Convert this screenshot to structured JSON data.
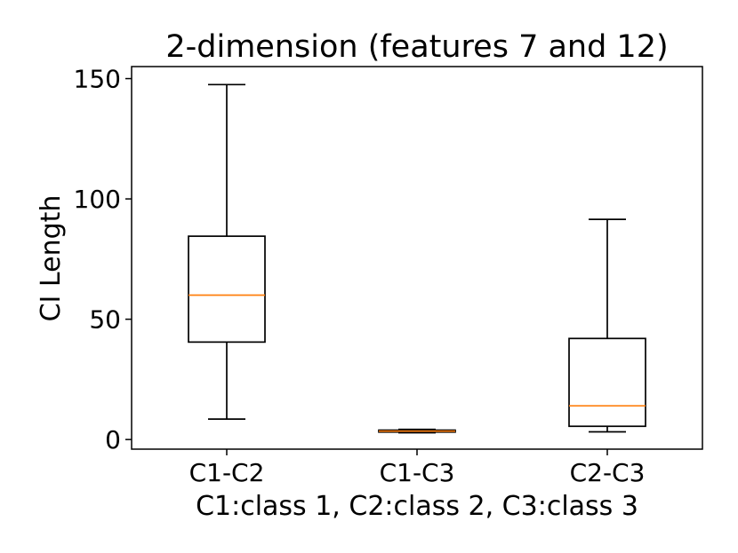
{
  "chart_data": {
    "type": "box",
    "title": "2-dimension (features 7 and 12)",
    "xlabel": "C1:class 1, C2:class 2, C3:class 3",
    "ylabel": "CI Length",
    "ylim": [
      -4,
      155
    ],
    "yticks": [
      0,
      50,
      100,
      150
    ],
    "grid": false,
    "categories": [
      "C1-C2",
      "C1-C3",
      "C2-C3"
    ],
    "boxes": [
      {
        "category": "C1-C2",
        "whisker_low": 8.5,
        "q1": 40.5,
        "median": 60,
        "q3": 84.5,
        "whisker_high": 147.5
      },
      {
        "category": "C1-C3",
        "whisker_low": 2.8,
        "q1": 3.1,
        "median": 3.5,
        "q3": 3.9,
        "whisker_high": 4.2
      },
      {
        "category": "C2-C3",
        "whisker_low": 3.2,
        "q1": 5.5,
        "median": 14,
        "q3": 42,
        "whisker_high": 91.5
      }
    ],
    "colors": {
      "box": "#000000",
      "median": "#ff7f0e",
      "axes": "#000000"
    }
  }
}
